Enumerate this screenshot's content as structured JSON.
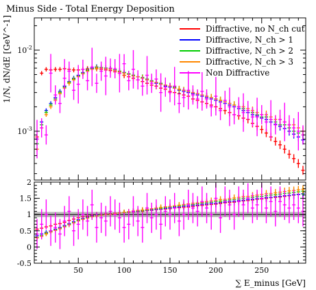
{
  "chart_data": {
    "type": "scatter",
    "title": "Minus Side - Total Energy Deposition",
    "xlabel": "∑ E_minus [GeV]",
    "ylabel": "1/N, dN/dE [GeV^-1]",
    "ratio_ylabel": "",
    "xlim": [
      2,
      298
    ],
    "ylim": [
      0.00025,
      0.025
    ],
    "y_scale": "log",
    "ratio_ylim": [
      -0.5,
      2
    ],
    "x_ticks": [
      "50",
      "100",
      "150",
      "200",
      "250"
    ],
    "y_ticks": [
      "10^-3",
      "10^-2"
    ],
    "ratio_ticks": [
      "-0.5",
      "0",
      "0.5",
      "1",
      "1.5",
      "2"
    ],
    "legend_position": "top-right",
    "reference_band": {
      "y": 1.0,
      "half_width": 0.08,
      "color": "#a8a8a8"
    },
    "x": [
      5,
      10,
      15,
      20,
      25,
      30,
      35,
      40,
      45,
      50,
      55,
      60,
      65,
      70,
      75,
      80,
      85,
      90,
      95,
      100,
      105,
      110,
      115,
      120,
      125,
      130,
      135,
      140,
      145,
      150,
      155,
      160,
      165,
      170,
      175,
      180,
      185,
      190,
      195,
      200,
      205,
      210,
      215,
      220,
      225,
      230,
      235,
      240,
      245,
      250,
      255,
      260,
      265,
      270,
      275,
      280,
      285,
      290,
      295
    ],
    "series": [
      {
        "name": "Diffractive, no N_ch cut",
        "color": "#ff0000",
        "values": [
          0.00085,
          0.0052,
          0.0058,
          0.0057,
          0.0058,
          0.0058,
          0.0059,
          0.0058,
          0.0057,
          0.0057,
          0.0058,
          0.0059,
          0.006,
          0.0059,
          0.0058,
          0.0057,
          0.0056,
          0.0054,
          0.0052,
          0.0049,
          0.0047,
          0.0045,
          0.0043,
          0.0041,
          0.0039,
          0.0037,
          0.0036,
          0.0034,
          0.0033,
          0.0031,
          0.003,
          0.0029,
          0.0028,
          0.0027,
          0.0025,
          0.0024,
          0.0023,
          0.0022,
          0.0021,
          0.002,
          0.0019,
          0.0018,
          0.0017,
          0.0016,
          0.00155,
          0.00145,
          0.0014,
          0.00125,
          0.00115,
          0.00105,
          0.00095,
          0.00085,
          0.00075,
          0.00068,
          0.0006,
          0.00052,
          0.00046,
          0.0004,
          0.00033
        ],
        "ratio": [
          0.55,
          0.58,
          0.62,
          0.65,
          0.7,
          0.72,
          0.76,
          0.82,
          0.86,
          0.9,
          0.93,
          0.95,
          0.98,
          1.0,
          1.01,
          1.02,
          1.03,
          1.04,
          1.05,
          1.06,
          1.07,
          1.08,
          1.09,
          1.1,
          1.12,
          1.13,
          1.15,
          1.16,
          1.17,
          1.18,
          1.2,
          1.21,
          1.22,
          1.23,
          1.25,
          1.27,
          1.28,
          1.3,
          1.31,
          1.32,
          1.34,
          1.36,
          1.37,
          1.38,
          1.4,
          1.42,
          1.43,
          1.45,
          1.47,
          1.48,
          1.5,
          1.52,
          1.53,
          1.54,
          1.56,
          1.58,
          1.6,
          1.62,
          1.64
        ]
      },
      {
        "name": "Diffractive, N_ch > 1",
        "color": "#0000ff",
        "values": [
          0.0008,
          0.0013,
          0.0018,
          0.0022,
          0.0026,
          0.0031,
          0.0036,
          0.0041,
          0.0045,
          0.0049,
          0.0053,
          0.0057,
          0.006,
          0.0062,
          0.0061,
          0.006,
          0.0059,
          0.0057,
          0.0055,
          0.0053,
          0.0051,
          0.0049,
          0.0047,
          0.0045,
          0.0043,
          0.0041,
          0.0039,
          0.0038,
          0.0036,
          0.0035,
          0.0034,
          0.0032,
          0.0031,
          0.003,
          0.0029,
          0.0028,
          0.0027,
          0.0026,
          0.0025,
          0.0024,
          0.0023,
          0.0022,
          0.0021,
          0.002,
          0.0019,
          0.0018,
          0.0017,
          0.0016,
          0.00155,
          0.00145,
          0.0014,
          0.0013,
          0.00122,
          0.00115,
          0.00108,
          0.001,
          0.00092,
          0.00085,
          0.00078
        ],
        "ratio": [
          0.35,
          0.4,
          0.45,
          0.5,
          0.55,
          0.6,
          0.66,
          0.72,
          0.78,
          0.84,
          0.88,
          0.92,
          0.96,
          0.99,
          1.0,
          1.01,
          1.02,
          1.03,
          1.05,
          1.06,
          1.08,
          1.09,
          1.1,
          1.11,
          1.13,
          1.14,
          1.16,
          1.17,
          1.19,
          1.2,
          1.22,
          1.23,
          1.25,
          1.26,
          1.28,
          1.29,
          1.31,
          1.32,
          1.34,
          1.35,
          1.37,
          1.38,
          1.4,
          1.41,
          1.43,
          1.44,
          1.46,
          1.47,
          1.49,
          1.5,
          1.52,
          1.53,
          1.55,
          1.56,
          1.58,
          1.59,
          1.61,
          1.62,
          1.64
        ]
      },
      {
        "name": "Diffractive, N_ch > 2",
        "color": "#00cc00",
        "values": [
          0.0007,
          0.0012,
          0.0017,
          0.0021,
          0.0025,
          0.003,
          0.0035,
          0.004,
          0.0044,
          0.0048,
          0.0052,
          0.0056,
          0.0059,
          0.0061,
          0.0061,
          0.006,
          0.0059,
          0.0057,
          0.0055,
          0.0053,
          0.0051,
          0.0049,
          0.0047,
          0.0046,
          0.0044,
          0.0042,
          0.004,
          0.0039,
          0.0037,
          0.0036,
          0.0035,
          0.0033,
          0.0032,
          0.0031,
          0.003,
          0.0029,
          0.0028,
          0.0027,
          0.0026,
          0.0025,
          0.0024,
          0.0023,
          0.0022,
          0.0021,
          0.002,
          0.0019,
          0.0018,
          0.0017,
          0.0016,
          0.0015,
          0.0015,
          0.0014,
          0.0013,
          0.0012,
          0.0012,
          0.0011,
          0.001,
          0.00095,
          0.0009
        ],
        "ratio": [
          0.3,
          0.35,
          0.42,
          0.48,
          0.53,
          0.58,
          0.64,
          0.7,
          0.76,
          0.82,
          0.86,
          0.9,
          0.94,
          0.97,
          0.99,
          1.0,
          1.01,
          1.03,
          1.05,
          1.06,
          1.08,
          1.1,
          1.11,
          1.13,
          1.14,
          1.16,
          1.18,
          1.19,
          1.21,
          1.23,
          1.25,
          1.26,
          1.28,
          1.3,
          1.31,
          1.33,
          1.35,
          1.36,
          1.38,
          1.4,
          1.41,
          1.43,
          1.45,
          1.46,
          1.48,
          1.5,
          1.51,
          1.53,
          1.55,
          1.56,
          1.58,
          1.6,
          1.61,
          1.63,
          1.65,
          1.66,
          1.68,
          1.7,
          1.72
        ]
      },
      {
        "name": "Diffractive, N_ch > 3",
        "color": "#ff8800",
        "values": [
          0.0006,
          0.0011,
          0.0016,
          0.002,
          0.0024,
          0.0029,
          0.0034,
          0.0039,
          0.0043,
          0.0047,
          0.0051,
          0.0055,
          0.0058,
          0.006,
          0.006,
          0.0059,
          0.0058,
          0.0056,
          0.0054,
          0.0052,
          0.005,
          0.0048,
          0.0047,
          0.0045,
          0.0043,
          0.0041,
          0.004,
          0.0038,
          0.0037,
          0.0036,
          0.0034,
          0.0033,
          0.0032,
          0.0031,
          0.003,
          0.0029,
          0.0028,
          0.0027,
          0.0026,
          0.0025,
          0.0024,
          0.0023,
          0.0022,
          0.0021,
          0.002,
          0.002,
          0.0019,
          0.0018,
          0.0017,
          0.0016,
          0.0016,
          0.0015,
          0.0014,
          0.0014,
          0.0013,
          0.0012,
          0.0012,
          0.0011,
          0.001
        ],
        "ratio": [
          0.28,
          0.33,
          0.4,
          0.46,
          0.51,
          0.56,
          0.62,
          0.68,
          0.74,
          0.8,
          0.85,
          0.89,
          0.93,
          0.96,
          0.98,
          1.0,
          1.01,
          1.03,
          1.05,
          1.07,
          1.09,
          1.11,
          1.13,
          1.14,
          1.16,
          1.18,
          1.2,
          1.22,
          1.24,
          1.25,
          1.27,
          1.29,
          1.31,
          1.33,
          1.35,
          1.36,
          1.38,
          1.4,
          1.42,
          1.44,
          1.46,
          1.47,
          1.49,
          1.51,
          1.53,
          1.55,
          1.56,
          1.58,
          1.6,
          1.62,
          1.64,
          1.65,
          1.67,
          1.69,
          1.71,
          1.73,
          1.74,
          1.76,
          1.78
        ]
      },
      {
        "name": "Non Diffractive",
        "color": "#ff00ff",
        "values": [
          0.0008,
          0.0011,
          0.0009,
          0.0052,
          0.0028,
          0.0022,
          0.0045,
          0.0055,
          0.0032,
          0.0038,
          0.0058,
          0.0042,
          0.0062,
          0.0039,
          0.0055,
          0.0048,
          0.006,
          0.0059,
          0.0052,
          0.0068,
          0.0042,
          0.0058,
          0.0043,
          0.0036,
          0.0049,
          0.0039,
          0.0044,
          0.003,
          0.0035,
          0.003,
          0.0036,
          0.0022,
          0.0026,
          0.0032,
          0.0028,
          0.0025,
          0.0031,
          0.0025,
          0.002,
          0.0027,
          0.0018,
          0.0024,
          0.002,
          0.0016,
          0.002,
          0.0017,
          0.0018,
          0.0015,
          0.0015,
          0.0016,
          0.0013,
          0.0014,
          0.0012,
          0.0014,
          0.0013,
          0.0012,
          0.0011,
          0.001,
          0.0009
        ],
        "ratio": [
          0.4,
          0.7,
          1.0,
          0.5,
          0.6,
          0.4,
          0.8,
          1.1,
          0.5,
          0.7,
          1.0,
          0.8,
          1.3,
          0.6,
          0.9,
          0.8,
          1.1,
          1.0,
          0.9,
          0.6,
          0.7,
          1.1,
          0.8,
          0.6,
          1.2,
          0.9,
          1.0,
          0.7,
          1.1,
          1.0,
          1.2,
          0.8,
          1.0,
          1.3,
          1.2,
          1.1,
          1.4,
          1.2,
          1.0,
          1.5,
          0.9,
          1.4,
          1.3,
          1.0,
          1.4,
          1.3,
          1.5,
          1.2,
          1.3,
          1.5,
          1.2,
          1.4,
          1.1,
          1.4,
          1.3,
          1.2,
          1.3,
          1.2,
          1.1
        ]
      }
    ]
  }
}
